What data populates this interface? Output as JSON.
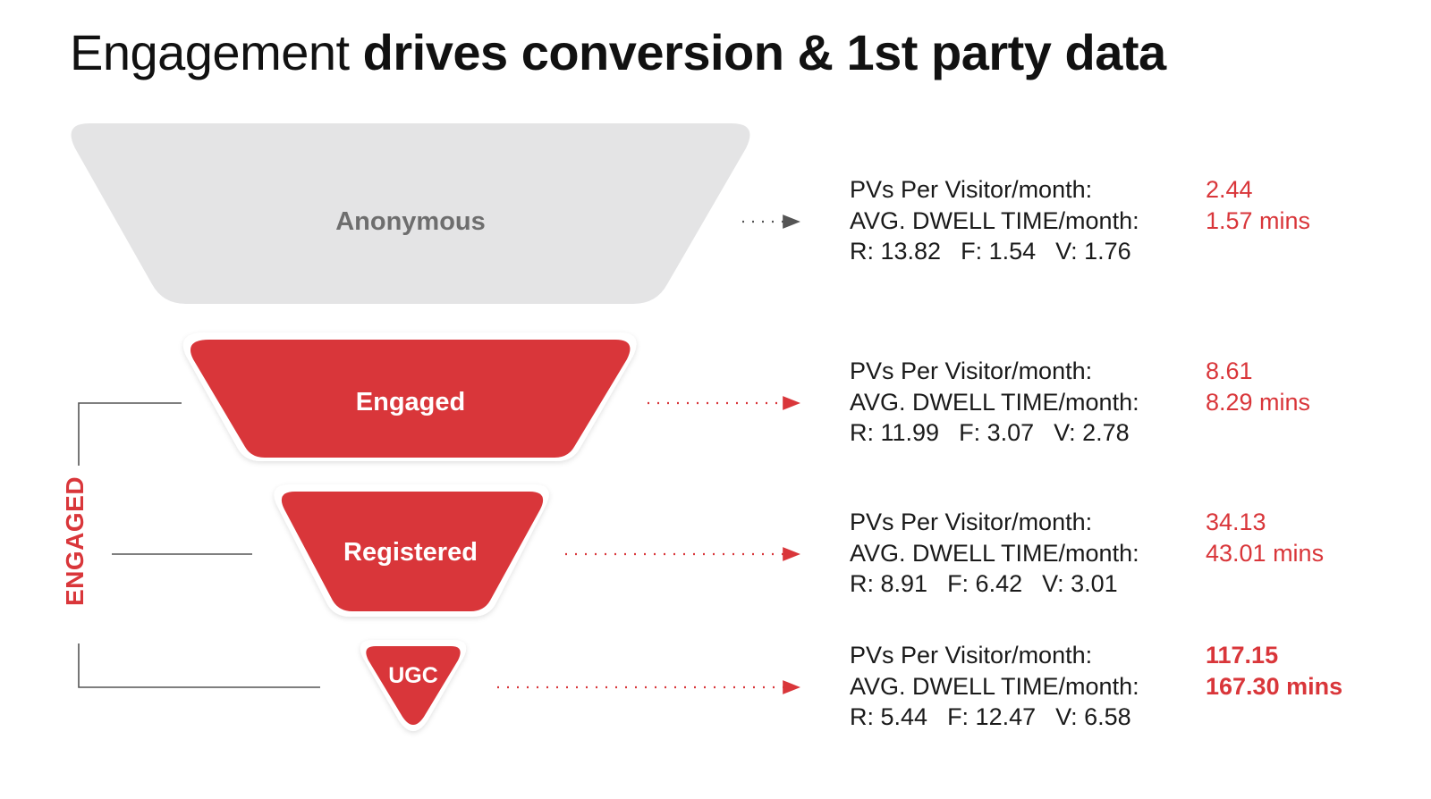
{
  "title": {
    "light": "Engagement",
    "bold": "drives conversion & 1st party data"
  },
  "side_label": "ENGAGED",
  "colors": {
    "accent": "#d9363a",
    "anonymous_fill": "#e4e4e5",
    "anonymous_text": "#6e6e6e",
    "connector": "#555555"
  },
  "stages": [
    {
      "name": "Anonymous",
      "pvs_label": "PVs Per Visitor/month:",
      "pvs_value": "2.44",
      "dwell_label": "AVG. DWELL TIME/month:",
      "dwell_value": "1.57 mins",
      "r": "R: 13.82",
      "f": "F: 1.54",
      "v": "V: 1.76"
    },
    {
      "name": "Engaged",
      "pvs_label": "PVs Per Visitor/month:",
      "pvs_value": "8.61",
      "dwell_label": "AVG. DWELL TIME/month:",
      "dwell_value": "8.29 mins",
      "r": "R: 11.99",
      "f": "F: 3.07",
      "v": "V: 2.78"
    },
    {
      "name": "Registered",
      "pvs_label": "PVs Per Visitor/month:",
      "pvs_value": "34.13",
      "dwell_label": "AVG. DWELL TIME/month:",
      "dwell_value": "43.01 mins",
      "r": "R: 8.91",
      "f": "F: 6.42",
      "v": "V: 3.01"
    },
    {
      "name": "UGC",
      "pvs_label": "PVs Per Visitor/month:",
      "pvs_value": "117.15",
      "dwell_label": "AVG. DWELL TIME/month:",
      "dwell_value": "167.30 mins",
      "r": "R: 5.44",
      "f": "F: 12.47",
      "v": "V: 6.58"
    }
  ]
}
